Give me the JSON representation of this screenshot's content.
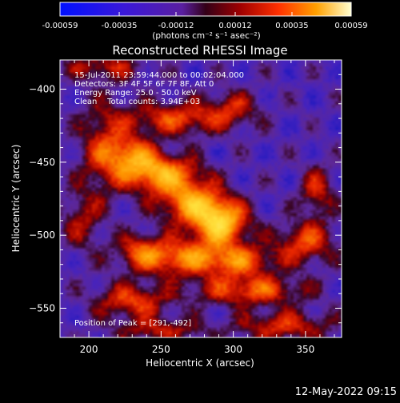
{
  "chart_data": {
    "type": "heatmap",
    "title": "Reconstructed RHESSI Image",
    "xlabel": "Heliocentric X (arcsec)",
    "ylabel": "Heliocentric Y (arcsec)",
    "xlim": [
      180,
      375
    ],
    "ylim": [
      -570,
      -380
    ],
    "x_ticks": [
      200,
      250,
      300,
      350
    ],
    "y_ticks": [
      -400,
      -450,
      -500,
      -550
    ],
    "colorbar": {
      "range": [
        -0.00059,
        0.00059
      ],
      "ticks": [
        -0.00059,
        -0.00035,
        -0.00012,
        0.00012,
        0.00035,
        0.00059
      ],
      "tick_labels": [
        "-0.00059",
        "-0.00035",
        "-0.00012",
        "0.00012",
        "0.00035",
        "0.00059"
      ],
      "unit_label": "(photons cm⁻² s⁻¹ asec⁻²)"
    },
    "annotations": [
      "15-Jul-2011 23:59:44.000 to 00:02:04.000",
      "Detectors: 3F 4F 5F 6F 7F 8F, Att 0",
      "Energy Range: 25.0 - 50.0 keV",
      "Clean    Total counts: 3.94E+03"
    ],
    "peak_label": "Position of Peak = [291,-492]",
    "peak": [
      291,
      -492
    ],
    "sources": [
      {
        "x": 291,
        "y": -492,
        "amp": 1.0,
        "sx": 13,
        "sy": 10
      },
      {
        "x": 272,
        "y": -478,
        "amp": 0.8,
        "sx": 16,
        "sy": 10
      },
      {
        "x": 250,
        "y": -458,
        "amp": 0.85,
        "sx": 18,
        "sy": 9
      },
      {
        "x": 230,
        "y": -445,
        "amp": 0.6,
        "sx": 12,
        "sy": 9
      },
      {
        "x": 262,
        "y": -420,
        "amp": 0.55,
        "sx": 26,
        "sy": 8
      },
      {
        "x": 300,
        "y": -412,
        "amp": 0.35,
        "sx": 12,
        "sy": 8
      },
      {
        "x": 210,
        "y": -440,
        "amp": 0.45,
        "sx": 12,
        "sy": 22
      },
      {
        "x": 262,
        "y": -515,
        "amp": 0.7,
        "sx": 24,
        "sy": 9
      },
      {
        "x": 305,
        "y": -518,
        "amp": 0.55,
        "sx": 18,
        "sy": 8
      },
      {
        "x": 350,
        "y": -505,
        "amp": 0.55,
        "sx": 14,
        "sy": 10
      },
      {
        "x": 358,
        "y": -470,
        "amp": 0.45,
        "sx": 8,
        "sy": 12
      },
      {
        "x": 312,
        "y": -538,
        "amp": 0.6,
        "sx": 26,
        "sy": 7
      },
      {
        "x": 230,
        "y": -545,
        "amp": 0.55,
        "sx": 18,
        "sy": 8
      },
      {
        "x": 250,
        "y": -565,
        "amp": 0.4,
        "sx": 22,
        "sy": 6
      },
      {
        "x": 335,
        "y": -562,
        "amp": 0.5,
        "sx": 22,
        "sy": 7
      },
      {
        "x": 195,
        "y": -490,
        "amp": 0.35,
        "sx": 10,
        "sy": 14
      },
      {
        "x": 210,
        "y": -385,
        "amp": 0.4,
        "sx": 20,
        "sy": 6
      },
      {
        "x": 235,
        "y": -510,
        "amp": 0.35,
        "sx": 10,
        "sy": 8
      }
    ]
  },
  "footer": {
    "timestamp": "12-May-2022 09:15"
  }
}
